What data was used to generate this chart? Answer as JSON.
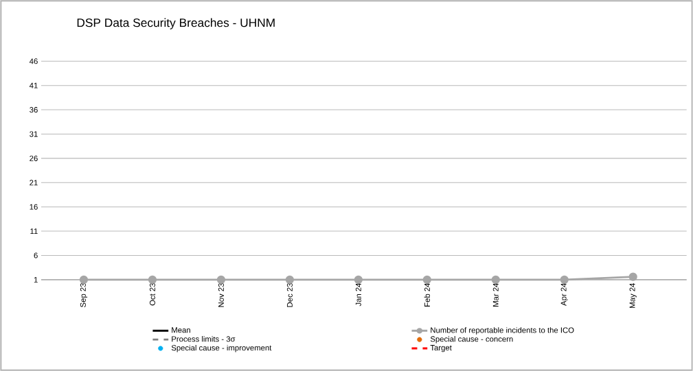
{
  "chart_data": {
    "type": "line",
    "title": "DSP Data Security Breaches - UHNM",
    "categories": [
      "Sep 23",
      "Oct 23",
      "Nov 23",
      "Dec 23",
      "Jan 24",
      "Feb 24",
      "Mar 24",
      "Apr 24",
      "May 24"
    ],
    "series": [
      {
        "name": "Mean",
        "color": "#000000",
        "values": [
          null,
          null,
          null,
          null,
          null,
          null,
          null,
          null,
          null
        ],
        "line_style": "solid",
        "marker": "none"
      },
      {
        "name": "Number of reportable incidents to the ICO",
        "color": "#a6a6a6",
        "values": [
          1,
          1,
          1,
          1,
          1,
          1,
          1,
          1,
          1.6
        ],
        "line_style": "solid",
        "marker": "circle"
      },
      {
        "name": "Process limits - 3σ",
        "color": "#7f7f7f",
        "values": [
          null,
          null,
          null,
          null,
          null,
          null,
          null,
          null,
          null
        ],
        "line_style": "dashed",
        "marker": "none"
      },
      {
        "name": "Special cause - concern",
        "color": "#e36c09",
        "type": "scatter",
        "values": [
          null,
          null,
          null,
          null,
          null,
          null,
          null,
          null,
          null
        ],
        "marker": "circle"
      },
      {
        "name": "Special cause  - improvement",
        "color": "#00b0f0",
        "type": "scatter",
        "values": [
          null,
          null,
          null,
          null,
          null,
          null,
          null,
          null,
          null
        ],
        "marker": "circle"
      },
      {
        "name": "Target",
        "color": "#ff0000",
        "values": [
          null,
          null,
          null,
          null,
          null,
          null,
          null,
          null,
          null
        ],
        "line_style": "dashed",
        "marker": "none"
      }
    ],
    "ylim": [
      1,
      46
    ],
    "yticks": [
      1,
      6,
      11,
      16,
      21,
      26,
      31,
      36,
      41,
      46
    ],
    "grid": "y",
    "legend": "bottom"
  }
}
